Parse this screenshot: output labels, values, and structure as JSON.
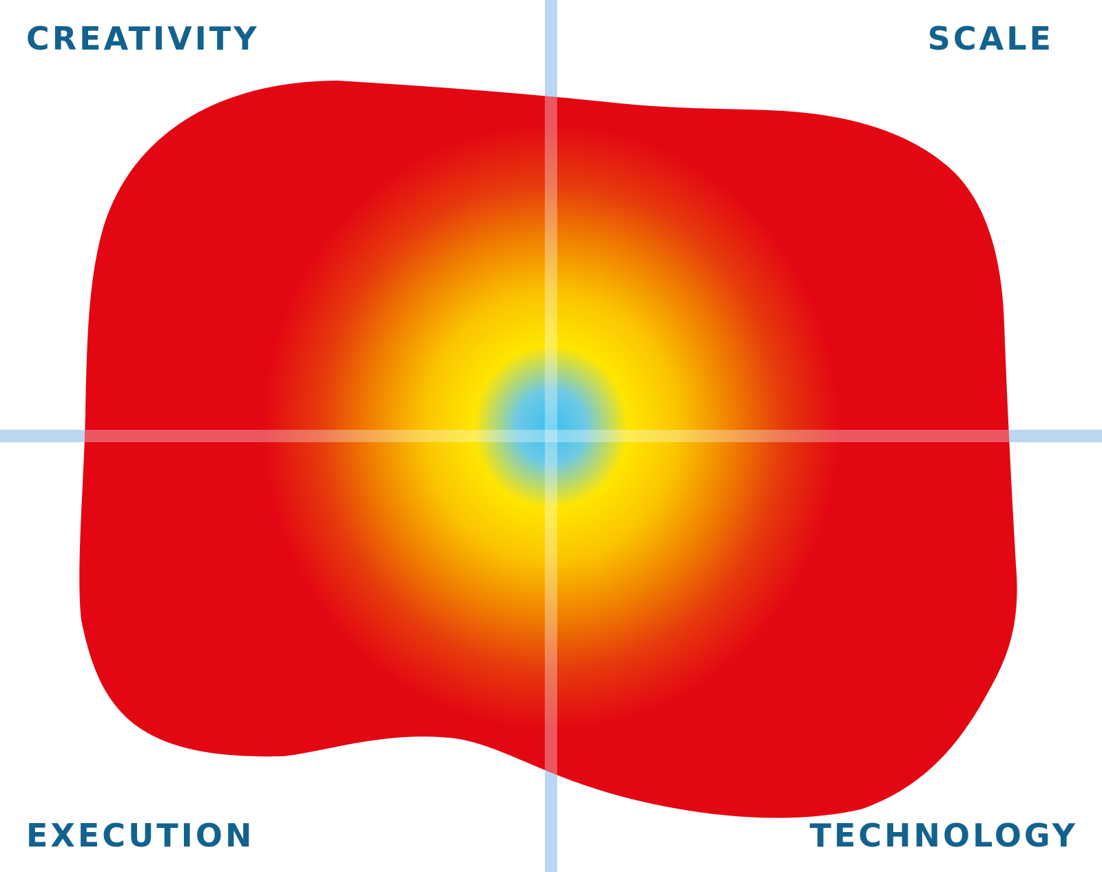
{
  "quadrants": {
    "top_left": "CREATIVITY",
    "top_right": "SCALE",
    "bottom_left": "EXECUTION",
    "bottom_right": "TECHNOLOGY"
  },
  "colors": {
    "label_text": "#13628e",
    "axis_line": "#b9d7f1",
    "axis_line_on_shape": "#f0a08a",
    "blob_outer": "#e30613",
    "blob_mid": "#f5a000",
    "blob_warm": "#ffe600",
    "blob_center": "#3cc0ee"
  },
  "icons": {
    "heat_blob": "gradient-blob-shape"
  }
}
